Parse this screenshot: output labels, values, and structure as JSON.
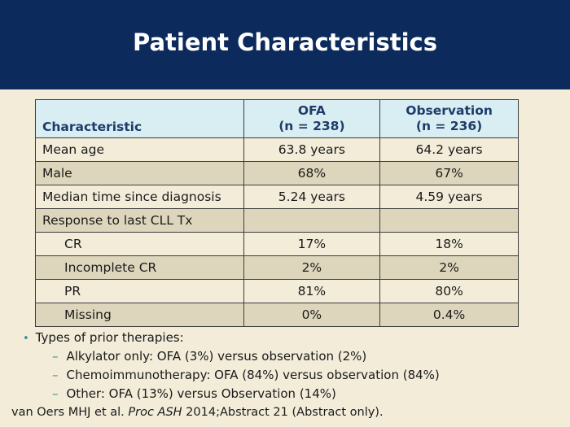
{
  "title": "Patient Characteristics",
  "table": {
    "headers": [
      [
        "Characteristic"
      ],
      [
        "OFA",
        "(n = 238)"
      ],
      [
        "Observation",
        "(n = 236)"
      ]
    ],
    "rows": [
      {
        "label": "Mean age",
        "ofa": "63.8 years",
        "obs": "64.2 years",
        "indent": false
      },
      {
        "label": "Male",
        "ofa": "68%",
        "obs": "67%",
        "indent": false
      },
      {
        "label": "Median time since diagnosis",
        "ofa": "5.24 years",
        "obs": "4.59 years",
        "indent": false
      },
      {
        "label": "Response to last CLL Tx",
        "ofa": "",
        "obs": "",
        "indent": false
      },
      {
        "label": "CR",
        "ofa": "17%",
        "obs": "18%",
        "indent": true
      },
      {
        "label": "Incomplete CR",
        "ofa": "2%",
        "obs": "2%",
        "indent": true
      },
      {
        "label": "PR",
        "ofa": "81%",
        "obs": "80%",
        "indent": true
      },
      {
        "label": "Missing",
        "ofa": "0%",
        "obs": "0.4%",
        "indent": true
      }
    ]
  },
  "bullets": {
    "main": "Types of prior therapies:",
    "sub": [
      "Alkylator only: OFA (3%) versus observation (2%)",
      "Chemoimmunotherapy: OFA (84%) versus observation (84%)",
      "Other: OFA (13%) versus Observation (14%)"
    ]
  },
  "citation": {
    "authors": "van Oers MHJ et al. ",
    "journal": "Proc ASH",
    "rest": " 2014;Abstract 21 (Abstract only)."
  }
}
